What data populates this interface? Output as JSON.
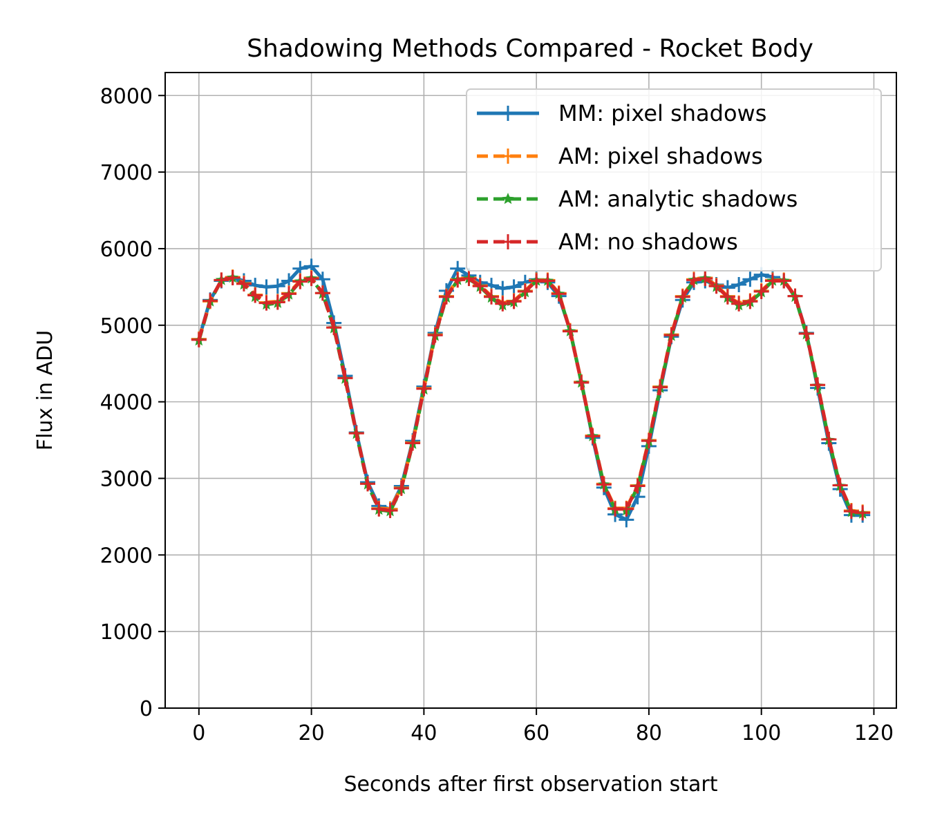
{
  "chart_data": {
    "type": "line",
    "title": "Shadowing Methods Compared - Rocket Body",
    "xlabel": "Seconds after first observation start",
    "ylabel": "Flux in ADU",
    "xlim": [
      -6,
      124
    ],
    "ylim": [
      0,
      8300
    ],
    "xticks": [
      0,
      20,
      40,
      60,
      80,
      100,
      120
    ],
    "yticks": [
      0,
      1000,
      2000,
      3000,
      4000,
      5000,
      6000,
      7000,
      8000
    ],
    "grid": true,
    "legend_position": "top-right",
    "x": [
      0,
      2,
      4,
      6,
      8,
      10,
      12,
      14,
      16,
      18,
      20,
      22,
      24,
      26,
      28,
      30,
      32,
      34,
      36,
      38,
      40,
      42,
      44,
      46,
      48,
      50,
      52,
      54,
      56,
      58,
      60,
      62,
      64,
      66,
      68,
      70,
      72,
      74,
      76,
      78,
      80,
      82,
      84,
      86,
      88,
      90,
      92,
      94,
      96,
      98,
      100,
      102,
      104,
      106,
      108,
      110,
      112,
      114,
      116,
      118
    ],
    "series": [
      {
        "name": "MM: pixel shadows",
        "color": "#1f77b4",
        "marker": "plus",
        "values": [
          4820,
          5330,
          5580,
          5620,
          5580,
          5520,
          5500,
          5510,
          5580,
          5740,
          5770,
          5600,
          5030,
          4340,
          3600,
          2950,
          2640,
          2600,
          2900,
          3490,
          4200,
          4900,
          5450,
          5740,
          5650,
          5560,
          5520,
          5480,
          5500,
          5560,
          5600,
          5560,
          5380,
          4930,
          4260,
          3530,
          2880,
          2530,
          2460,
          2760,
          3420,
          4150,
          4850,
          5330,
          5560,
          5580,
          5530,
          5490,
          5530,
          5600,
          5660,
          5630,
          5580,
          5380,
          4900,
          4180,
          3460,
          2860,
          2520,
          2520
        ]
      },
      {
        "name": "AM: pixel shadows",
        "color": "#ff7f0e",
        "marker": "plus",
        "values": [
          4820,
          5310,
          5590,
          5630,
          5550,
          5400,
          5300,
          5310,
          5420,
          5580,
          5620,
          5420,
          4970,
          4310,
          3590,
          2930,
          2610,
          2600,
          2880,
          3470,
          4180,
          4880,
          5380,
          5600,
          5620,
          5520,
          5380,
          5290,
          5320,
          5450,
          5590,
          5590,
          5420,
          4930,
          4260,
          3560,
          2930,
          2610,
          2610,
          2910,
          3500,
          4200,
          4880,
          5380,
          5600,
          5620,
          5520,
          5380,
          5290,
          5320,
          5450,
          5590,
          5590,
          5380,
          4890,
          4220,
          3510,
          2910,
          2580,
          2560
        ]
      },
      {
        "name": "AM: analytic shadows",
        "color": "#2ca02c",
        "marker": "star",
        "values": [
          4800,
          5310,
          5590,
          5620,
          5530,
          5370,
          5270,
          5290,
          5400,
          5570,
          5610,
          5410,
          4960,
          4300,
          3580,
          2920,
          2590,
          2570,
          2860,
          3450,
          4160,
          4860,
          5360,
          5590,
          5610,
          5500,
          5360,
          5260,
          5300,
          5430,
          5580,
          5580,
          5410,
          4920,
          4250,
          3550,
          2920,
          2590,
          2580,
          2890,
          3480,
          4180,
          4860,
          5360,
          5590,
          5610,
          5500,
          5360,
          5260,
          5300,
          5430,
          5580,
          5580,
          5370,
          4880,
          4210,
          3500,
          2900,
          2560,
          2540
        ]
      },
      {
        "name": "AM: no shadows",
        "color": "#d62728",
        "marker": "plus",
        "values": [
          4810,
          5320,
          5590,
          5620,
          5540,
          5390,
          5290,
          5300,
          5410,
          5570,
          5610,
          5420,
          4970,
          4310,
          3590,
          2930,
          2600,
          2580,
          2870,
          3460,
          4170,
          4870,
          5370,
          5590,
          5610,
          5510,
          5370,
          5280,
          5310,
          5440,
          5580,
          5580,
          5410,
          4920,
          4250,
          3550,
          2920,
          2600,
          2600,
          2900,
          3490,
          4190,
          4870,
          5370,
          5590,
          5610,
          5510,
          5370,
          5280,
          5310,
          5440,
          5580,
          5580,
          5380,
          4890,
          4220,
          3510,
          2910,
          2570,
          2550
        ]
      }
    ]
  }
}
